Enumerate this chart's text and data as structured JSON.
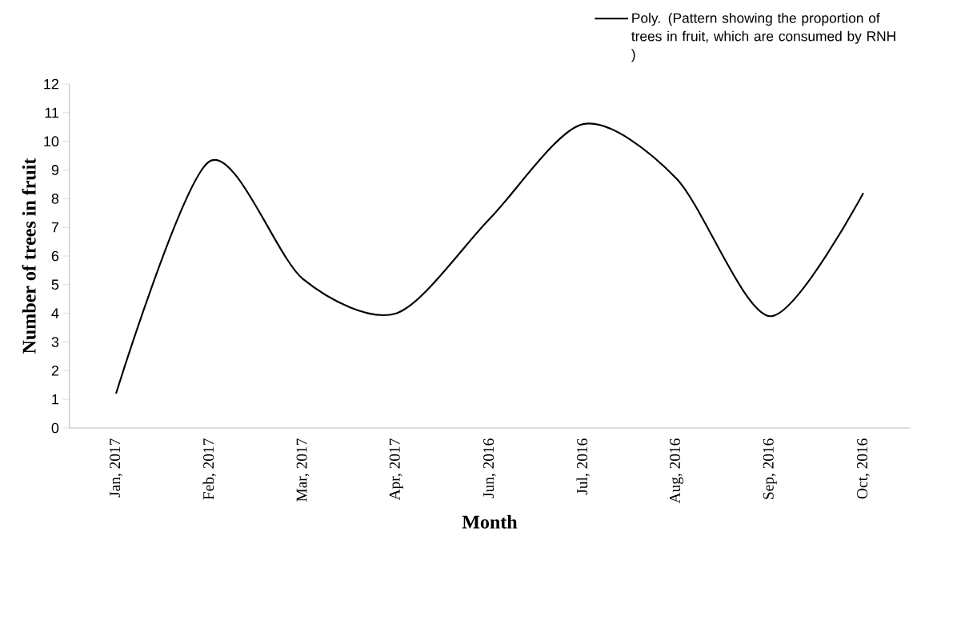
{
  "chart_data": {
    "type": "line",
    "xlabel": "Month",
    "ylabel": "Number of trees in fruit",
    "categories": [
      "Jan, 2017",
      "Feb, 2017",
      "Mar, 2017",
      "Apr, 2017",
      "Jun, 2016",
      "Jul, 2016",
      "Aug, 2016",
      "Sep, 2016",
      "Oct, 2016"
    ],
    "series": [
      {
        "name": "Poly. (Pattern showing the proportion of trees in fruit, which are consumed by RNH )",
        "color": "#000000",
        "values": [
          1.2,
          9.3,
          5.2,
          4.0,
          7.3,
          10.6,
          8.7,
          3.9,
          8.2
        ]
      }
    ],
    "ylim": [
      0,
      12
    ],
    "yticks": [
      0,
      1,
      2,
      3,
      4,
      5,
      6,
      7,
      8,
      9,
      10,
      11,
      12
    ],
    "legend": "top right",
    "marker": "none",
    "line_style": "solid",
    "grid": false
  }
}
